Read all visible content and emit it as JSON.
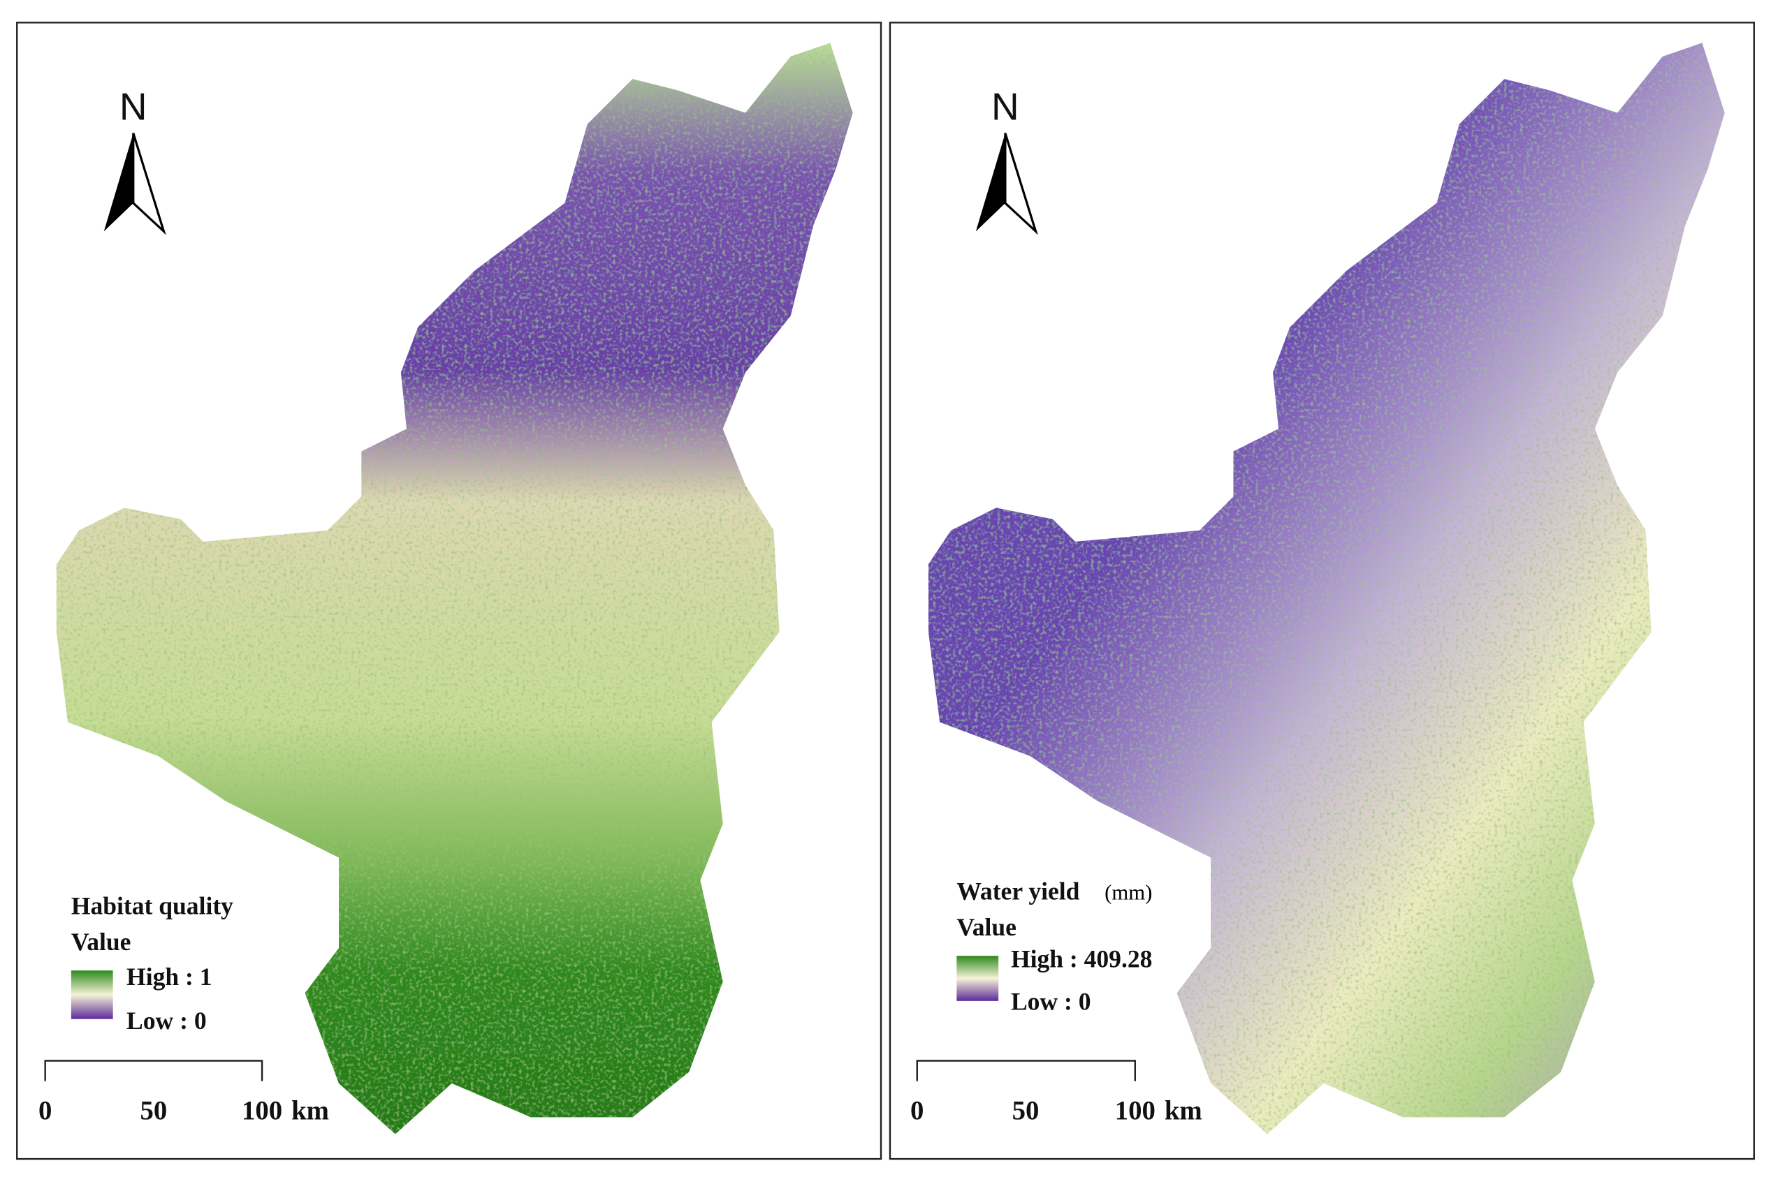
{
  "panels": [
    {
      "north": "N",
      "legend": {
        "title": "Habitat quality",
        "subtitle": "Value",
        "high": "High : 1",
        "low": "Low : 0"
      },
      "scale": {
        "ticks": [
          0,
          50,
          100
        ],
        "unit": "km"
      }
    },
    {
      "north": "N",
      "legend": {
        "title": "Water yield",
        "unit": "(mm)",
        "subtitle": "Value",
        "high": "High : 409.28",
        "low": "Low : 0"
      },
      "scale": {
        "ticks": [
          0,
          50,
          100
        ],
        "unit": "km"
      }
    }
  ]
}
